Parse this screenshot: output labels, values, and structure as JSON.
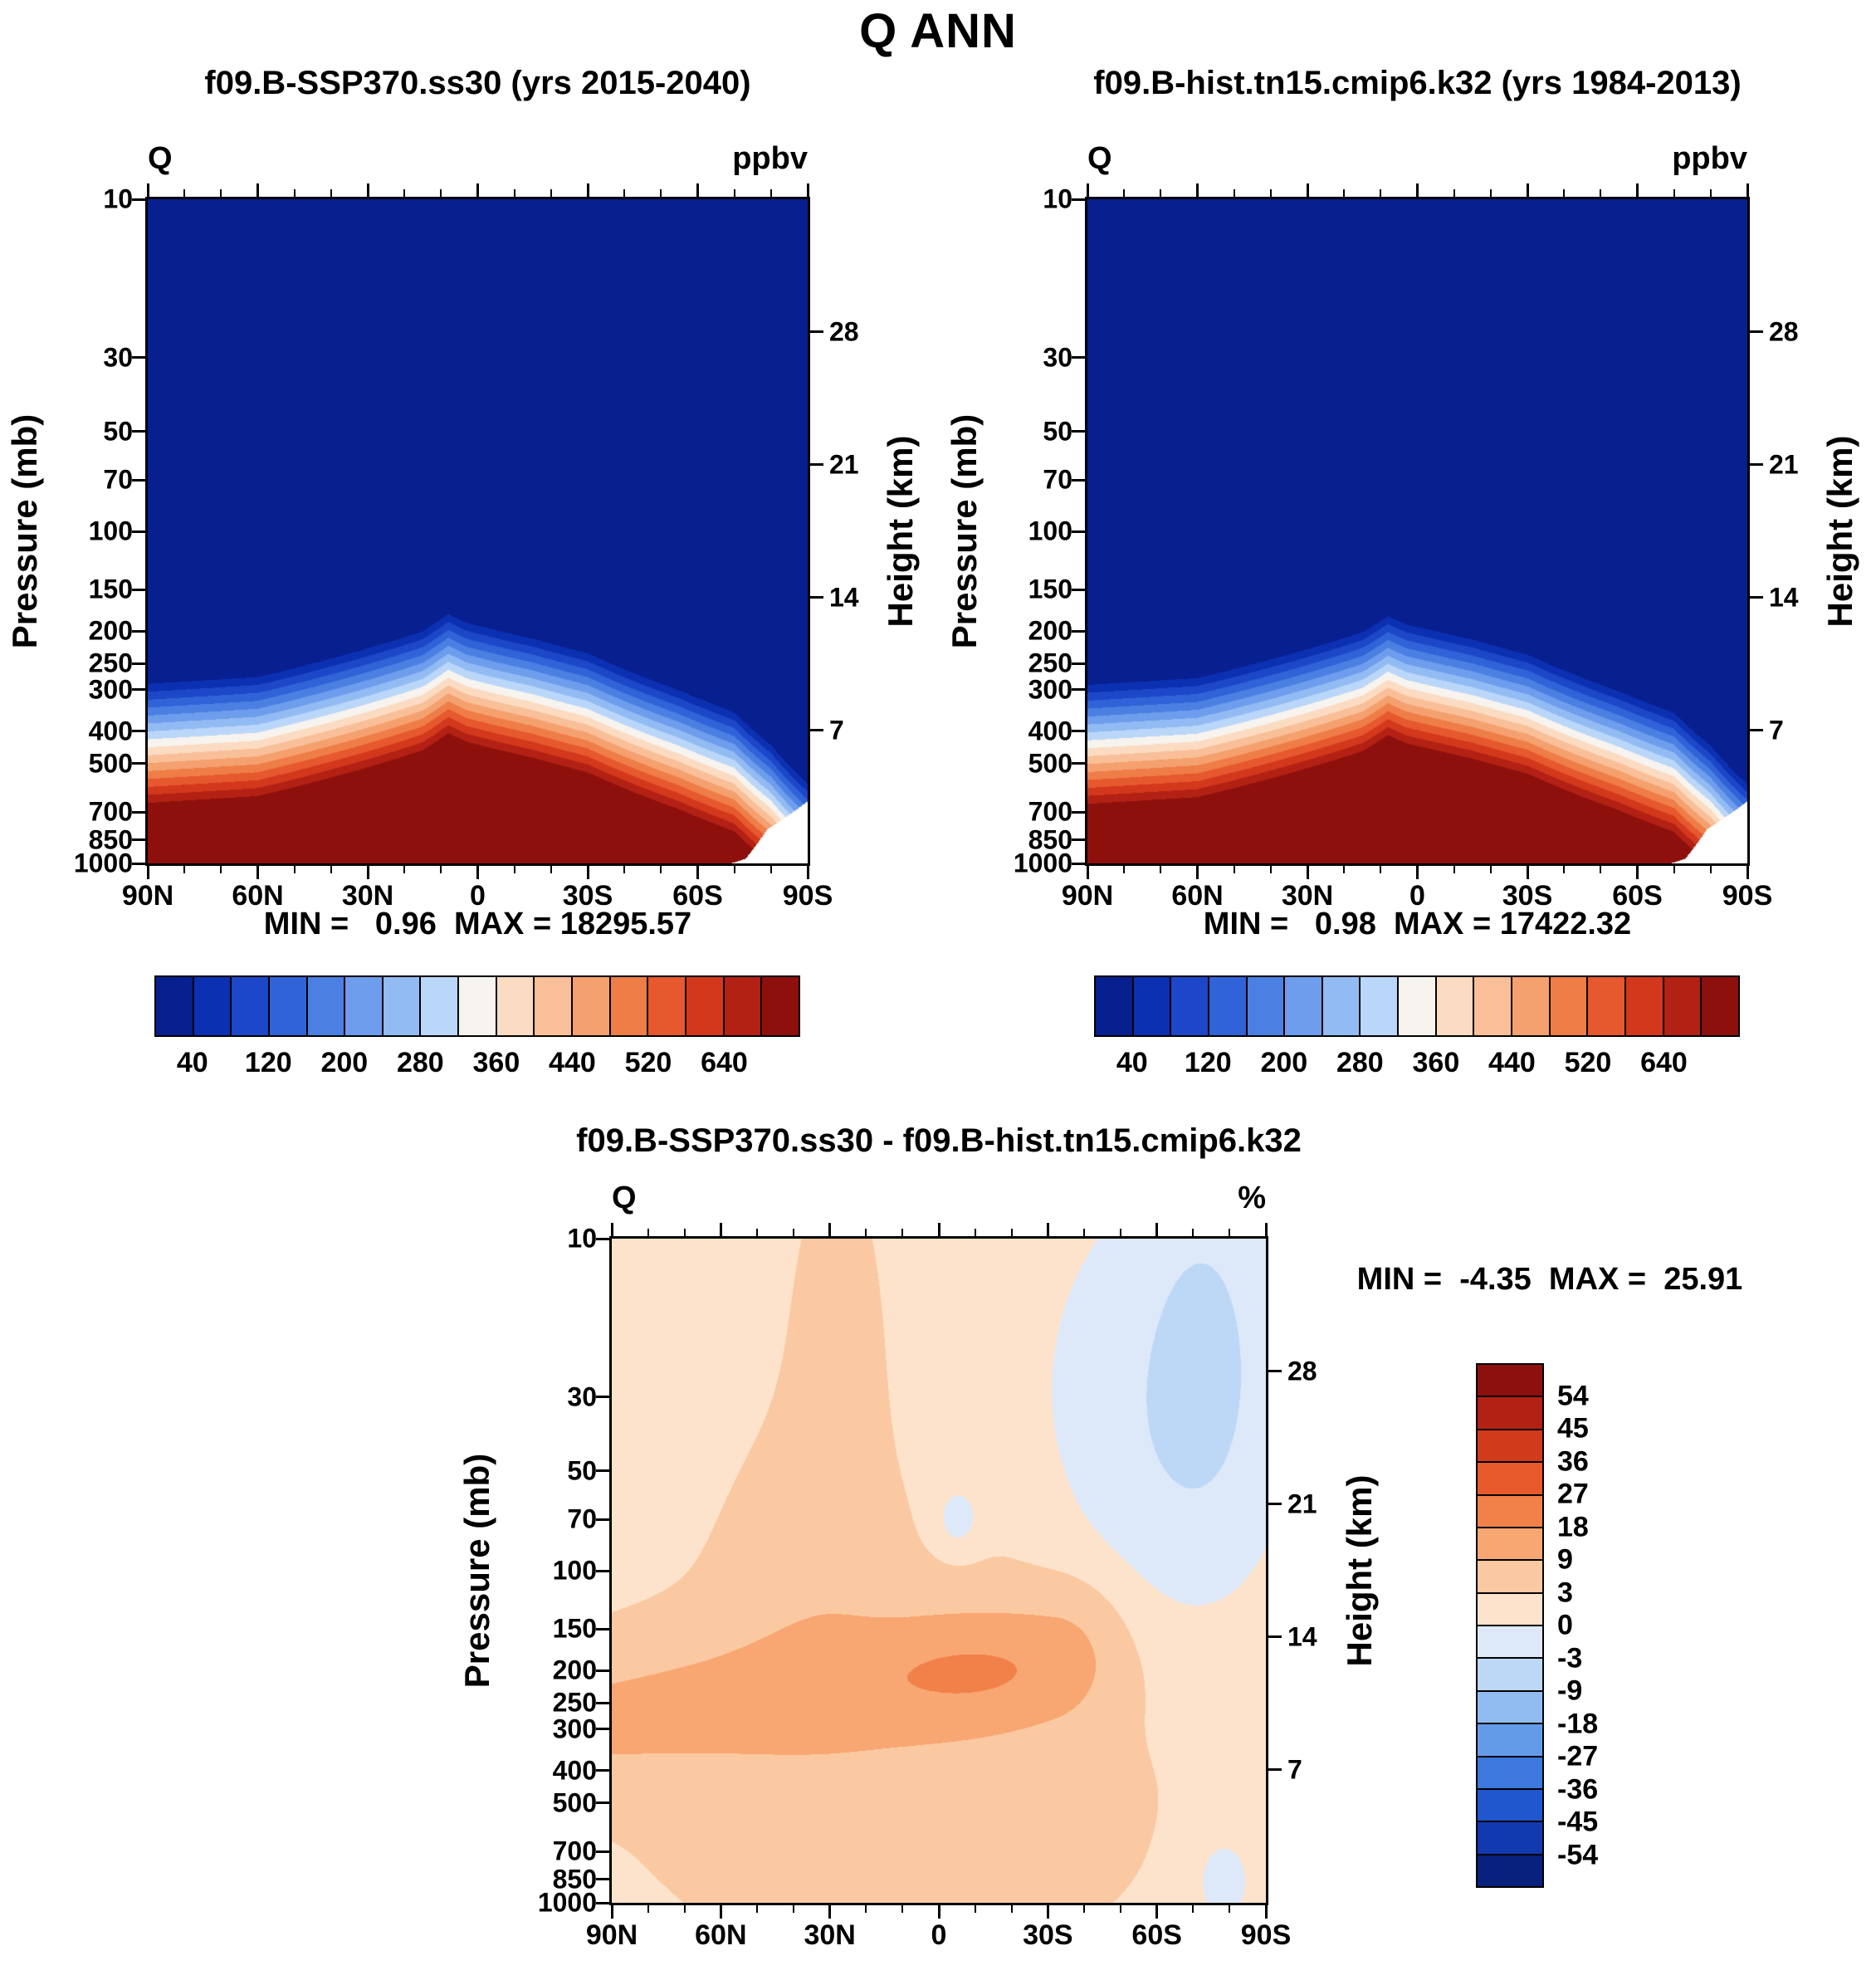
{
  "title": "Q ANN",
  "chart_data": [
    {
      "type": "heatmap",
      "panel": "top-left",
      "title": "f09.B-SSP370.ss30 (yrs 2015-2040)",
      "var_label": "Q",
      "units": "ppbv",
      "ylabel": "Pressure (mb)",
      "y2label": "Height (km)",
      "stats_text": "MIN =   0.96  MAX = 18295.57",
      "min": 0.96,
      "max": 18295.57,
      "x_axis": {
        "range_deg_n": [
          90,
          -90
        ],
        "minor_step_deg": 10,
        "major_ticks": [
          {
            "lat": 90,
            "label": "90N"
          },
          {
            "lat": 60,
            "label": "60N"
          },
          {
            "lat": 30,
            "label": "30N"
          },
          {
            "lat": 0,
            "label": "0"
          },
          {
            "lat": -30,
            "label": "30S"
          },
          {
            "lat": -60,
            "label": "60S"
          },
          {
            "lat": -90,
            "label": "90S"
          }
        ]
      },
      "y_axis": {
        "scale": "log",
        "range_mb": [
          10,
          1000
        ],
        "ticks_mb": [
          10,
          30,
          50,
          70,
          100,
          150,
          200,
          250,
          300,
          400,
          500,
          700,
          850,
          1000
        ]
      },
      "y2_axis": {
        "ticks_km": [
          28,
          21,
          14,
          7
        ],
        "scale_height_km": 7.6
      },
      "contour_levels_ppbv": [
        40,
        80,
        120,
        160,
        200,
        240,
        280,
        320,
        360,
        400,
        440,
        480,
        520,
        560,
        600,
        640
      ],
      "colorbar_labels": [
        "40",
        "120",
        "200",
        "280",
        "360",
        "440",
        "520",
        "640"
      ],
      "palette": [
        "#071f8f",
        "#0c30b2",
        "#1c47c8",
        "#2f63d7",
        "#4b80e2",
        "#6d9dec",
        "#93bbf3",
        "#bad6f9",
        "#f7f3ee",
        "#fbdcc2",
        "#f9bf98",
        "#f5a06f",
        "#ef7d48",
        "#e6582d",
        "#d3381c",
        "#b22113",
        "#8e100d"
      ],
      "field": {
        "kind": "tropopause_bands",
        "lats_deg_n": [
          90,
          60,
          30,
          15,
          8,
          3,
          -5,
          -15,
          -30,
          -55,
          -70,
          -80,
          -90
        ],
        "transition_mid_mb": [
          435,
          415,
          340,
          302,
          268,
          285,
          300,
          318,
          352,
          455,
          530,
          665,
          870
        ],
        "band_ln_p_step": 0.055,
        "surface_lats_deg_n": [
          90,
          -69,
          -73,
          -79,
          -90
        ],
        "surface_p_mb": [
          1001,
          1001,
          970,
          790,
          650
        ]
      }
    },
    {
      "type": "heatmap",
      "panel": "top-right",
      "title": "f09.B-hist.tn15.cmip6.k32 (yrs 1984-2013)",
      "var_label": "Q",
      "units": "ppbv",
      "ylabel": "Pressure (mb)",
      "y2label": "Height (km)",
      "stats_text": "MIN =   0.98  MAX = 17422.32",
      "min": 0.98,
      "max": 17422.32,
      "x_axis": {
        "range_deg_n": [
          90,
          -90
        ],
        "minor_step_deg": 10,
        "major_ticks": [
          {
            "lat": 90,
            "label": "90N"
          },
          {
            "lat": 60,
            "label": "60N"
          },
          {
            "lat": 30,
            "label": "30N"
          },
          {
            "lat": 0,
            "label": "0"
          },
          {
            "lat": -30,
            "label": "30S"
          },
          {
            "lat": -60,
            "label": "60S"
          },
          {
            "lat": -90,
            "label": "90S"
          }
        ]
      },
      "y_axis": {
        "scale": "log",
        "range_mb": [
          10,
          1000
        ],
        "ticks_mb": [
          10,
          30,
          50,
          70,
          100,
          150,
          200,
          250,
          300,
          400,
          500,
          700,
          850,
          1000
        ]
      },
      "y2_axis": {
        "ticks_km": [
          28,
          21,
          14,
          7
        ],
        "scale_height_km": 7.6
      },
      "contour_levels_ppbv": [
        40,
        80,
        120,
        160,
        200,
        240,
        280,
        320,
        360,
        400,
        440,
        480,
        520,
        560,
        600,
        640
      ],
      "colorbar_labels": [
        "40",
        "120",
        "200",
        "280",
        "360",
        "440",
        "520",
        "640"
      ],
      "palette": [
        "#071f8f",
        "#0c30b2",
        "#1c47c8",
        "#2f63d7",
        "#4b80e2",
        "#6d9dec",
        "#93bbf3",
        "#bad6f9",
        "#f7f3ee",
        "#fbdcc2",
        "#f9bf98",
        "#f5a06f",
        "#ef7d48",
        "#e6582d",
        "#d3381c",
        "#b22113",
        "#8e100d"
      ],
      "field": {
        "kind": "tropopause_bands",
        "lats_deg_n": [
          90,
          60,
          30,
          15,
          8,
          3,
          -5,
          -15,
          -30,
          -55,
          -70,
          -80,
          -90
        ],
        "transition_mid_mb": [
          438,
          418,
          342,
          304,
          272,
          288,
          302,
          320,
          355,
          458,
          532,
          668,
          872
        ],
        "band_ln_p_step": 0.055,
        "surface_lats_deg_n": [
          90,
          -69,
          -73,
          -79,
          -90
        ],
        "surface_p_mb": [
          1001,
          1001,
          970,
          790,
          650
        ]
      }
    },
    {
      "type": "heatmap",
      "panel": "bottom",
      "title": "f09.B-SSP370.ss30 - f09.B-hist.tn15.cmip6.k32",
      "var_label": "Q",
      "units": "%",
      "ylabel": "Pressure (mb)",
      "y2label": "Height (km)",
      "stats_text": "MIN =  -4.35  MAX =  25.91",
      "min": -4.35,
      "max": 25.91,
      "x_axis": {
        "range_deg_n": [
          90,
          -90
        ],
        "minor_step_deg": 10,
        "major_ticks": [
          {
            "lat": 90,
            "label": "90N"
          },
          {
            "lat": 60,
            "label": "60N"
          },
          {
            "lat": 30,
            "label": "30N"
          },
          {
            "lat": 0,
            "label": "0"
          },
          {
            "lat": -30,
            "label": "30S"
          },
          {
            "lat": -60,
            "label": "60S"
          },
          {
            "lat": -90,
            "label": "90S"
          }
        ]
      },
      "y_axis": {
        "scale": "log",
        "range_mb": [
          10,
          1000
        ],
        "ticks_mb": [
          10,
          30,
          50,
          70,
          100,
          150,
          200,
          250,
          300,
          400,
          500,
          700,
          850,
          1000
        ]
      },
      "y2_axis": {
        "ticks_km": [
          28,
          21,
          14,
          7
        ],
        "scale_height_km": 7.6
      },
      "contour_levels_pct": [
        -54,
        -45,
        -36,
        -27,
        -18,
        -9,
        -3,
        0,
        3,
        9,
        18,
        27,
        36,
        45,
        54
      ],
      "colorbar_labels": [
        "54",
        "45",
        "36",
        "27",
        "18",
        "9",
        "3",
        "0",
        "-3",
        "-9",
        "-18",
        "-27",
        "-36",
        "-45",
        "-54"
      ],
      "palette": [
        "#08207e",
        "#123ab0",
        "#2056ce",
        "#3d78de",
        "#649be8",
        "#90bcf1",
        "#bdd8f7",
        "#dde9f9",
        "#fde3cb",
        "#fbc9a1",
        "#f8a672",
        "#f28049",
        "#e85a2c",
        "#d23a1c",
        "#b22113",
        "#8e100d"
      ],
      "field": {
        "kind": "blobs",
        "base_pct": 1.5,
        "shapes": [
          {
            "kind": "gauss",
            "lat": 10,
            "logp": 2.55,
            "amp": 4.5,
            "slat": 55,
            "slogp": 0.45
          },
          {
            "kind": "band",
            "latmin": -32,
            "latmax": 96,
            "latsig": 11,
            "logp": 2.31,
            "tilt": 0.0015,
            "slogp": 0.135,
            "amp": 8.2
          },
          {
            "kind": "gauss",
            "lat": -10,
            "logp": 2.31,
            "amp": 6.5,
            "slat": 20,
            "slogp": 0.1
          },
          {
            "kind": "gauss",
            "lat": 38,
            "logp": 1.95,
            "amp": 2.6,
            "slat": 14,
            "slogp": 0.3
          },
          {
            "kind": "gauss",
            "lat": 28,
            "logp": 1.35,
            "amp": 3.2,
            "slat": 10,
            "slogp": 0.45
          },
          {
            "kind": "gauss",
            "lat": -62,
            "logp": 1.6,
            "amp": -4.0,
            "slat": 24,
            "slogp": 0.5
          },
          {
            "kind": "gauss",
            "lat": -74,
            "logp": 1.3,
            "amp": -3.0,
            "slat": 11,
            "slogp": 0.35
          },
          {
            "kind": "gauss",
            "lat": -5,
            "logp": 1.85,
            "amp": -3.6,
            "slat": 5,
            "slogp": 0.08
          },
          {
            "kind": "gauss",
            "lat": -78,
            "logp": 2.93,
            "amp": -3.2,
            "slat": 7,
            "slogp": 0.12
          }
        ]
      }
    }
  ]
}
